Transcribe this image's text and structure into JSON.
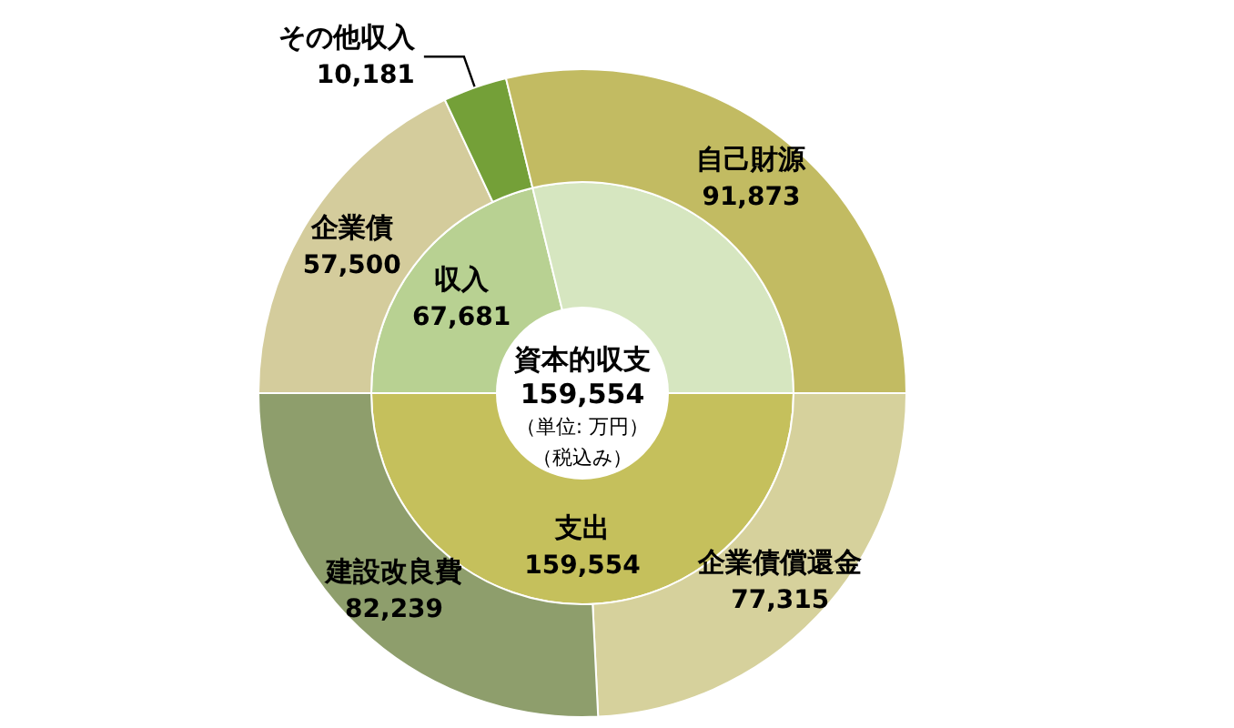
{
  "chart_data": [
    {
      "type": "donut",
      "title": "資本的収支",
      "subtitle": "159,554",
      "annotations": [
        "（単位: 万円）",
        "（税込み）"
      ],
      "categories": [
        "収入",
        null,
        "支出"
      ],
      "values": [
        67681,
        91873,
        159554
      ],
      "colors": [
        "#b8d192",
        "#d6e6c0",
        "#c5c05c"
      ],
      "value_labels": [
        "67,681",
        null,
        "159,554"
      ],
      "legend": false
    },
    {
      "type": "donut",
      "categories": [
        "企業債",
        "その他収入",
        "自己財源",
        "企業債償還金",
        "建設改良費"
      ],
      "values": [
        57500,
        10181,
        91873,
        77315,
        82239
      ],
      "colors": [
        "#d4cc9c",
        "#74a038",
        "#c2bb62",
        "#d6d19c",
        "#8e9e6c"
      ],
      "value_labels": [
        "57,500",
        "10,181",
        "91,873",
        "77,315",
        "82,239"
      ],
      "legend": false
    }
  ]
}
